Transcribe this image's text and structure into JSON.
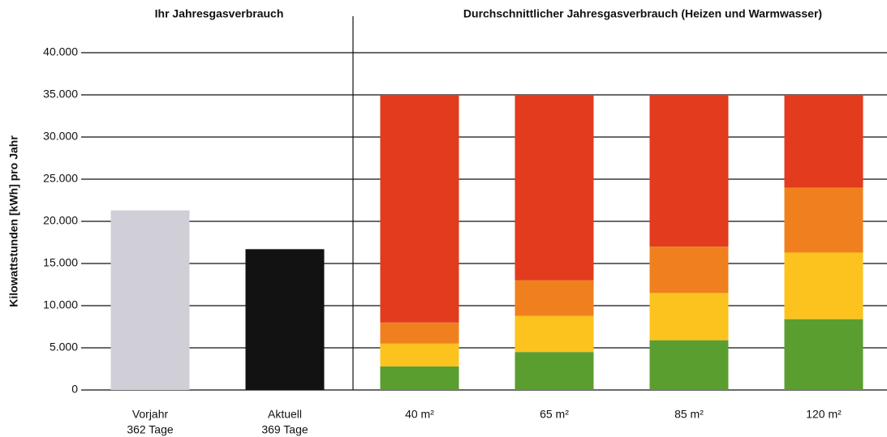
{
  "chart_data": [
    {
      "type": "bar",
      "title": "Ihr Jahresgasverbrauch",
      "ylabel": "Kilowattstunden [kWh] pro Jahr",
      "categories": [
        [
          "Vorjahr",
          "362 Tage"
        ],
        [
          "Aktuell",
          "369 Tage"
        ]
      ],
      "values": [
        21300,
        16700
      ],
      "colors": [
        "#d0cfd8",
        "#121212"
      ],
      "ylim": [
        0,
        40000
      ],
      "yticks": [
        0,
        {
          "value": 5000,
          "label": "5.000"
        },
        {
          "value": 10000,
          "label": "10.000"
        },
        {
          "value": 15000,
          "label": "15.000"
        },
        {
          "value": 20000,
          "label": "20.000"
        },
        {
          "value": 25000,
          "label": "25.000"
        },
        {
          "value": 30000,
          "label": "30.000"
        },
        {
          "value": 35000,
          "label": "35.000"
        },
        {
          "value": 40000,
          "label": "40.000"
        }
      ],
      "grid": true
    },
    {
      "type": "stacked_bar",
      "title": "Durchschnittlicher Jahresgasverbrauch (Heizen und Warmwasser)",
      "categories": [
        "40 m²",
        "65 m²",
        "85 m²",
        "120 m²"
      ],
      "ylim": [
        0,
        40000
      ],
      "series": [
        {
          "color": "#5b9e30",
          "values": [
            2800,
            4500,
            5900,
            8400
          ]
        },
        {
          "color": "#fcc31f",
          "values": [
            2700,
            4300,
            5600,
            7900
          ]
        },
        {
          "color": "#f0801e",
          "values": [
            2500,
            4200,
            5500,
            7700
          ]
        },
        {
          "color": "#e23b1d",
          "values": [
            27000,
            22000,
            18000,
            11000
          ]
        }
      ]
    }
  ]
}
